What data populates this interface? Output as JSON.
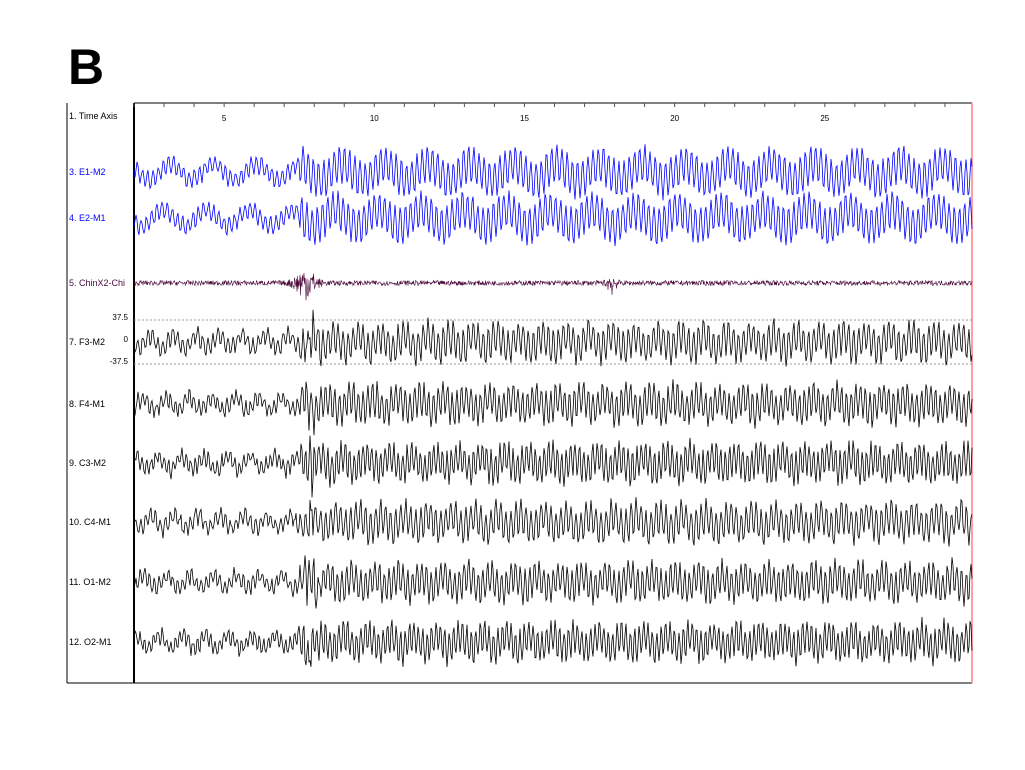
{
  "panel_label": "B",
  "chart_data": {
    "type": "line",
    "title": "",
    "x_axis": {
      "label": "1. Time Axis",
      "ticks": [
        5,
        10,
        15,
        20,
        25
      ],
      "minor_tick_step": 1,
      "range": [
        2,
        29.9
      ]
    },
    "grid": false,
    "channels": [
      {
        "name": "3. E1-M2",
        "color": "#0000ff"
      },
      {
        "name": "4. E2-M1",
        "color": "#0000ff"
      },
      {
        "name": "5. ChinX2-Chi",
        "color": "#4b0a3c"
      },
      {
        "name": "7. F3-M2",
        "color": "#000000",
        "scale": [
          "37.5",
          "0",
          "-37.5"
        ]
      },
      {
        "name": "8. F4-M1",
        "color": "#000000"
      },
      {
        "name": "9. C3-M2",
        "color": "#000000"
      },
      {
        "name": "10. C4-M1",
        "color": "#000000"
      },
      {
        "name": "11. O1-M2",
        "color": "#000000"
      },
      {
        "name": "12. O2-M1",
        "color": "#000000"
      }
    ],
    "events": [
      {
        "type": "arousal / chin EMG burst",
        "time": 7.7
      },
      {
        "type": "chin EMG burst",
        "time": 17.9
      }
    ],
    "cursor_color": "#ff8080"
  }
}
